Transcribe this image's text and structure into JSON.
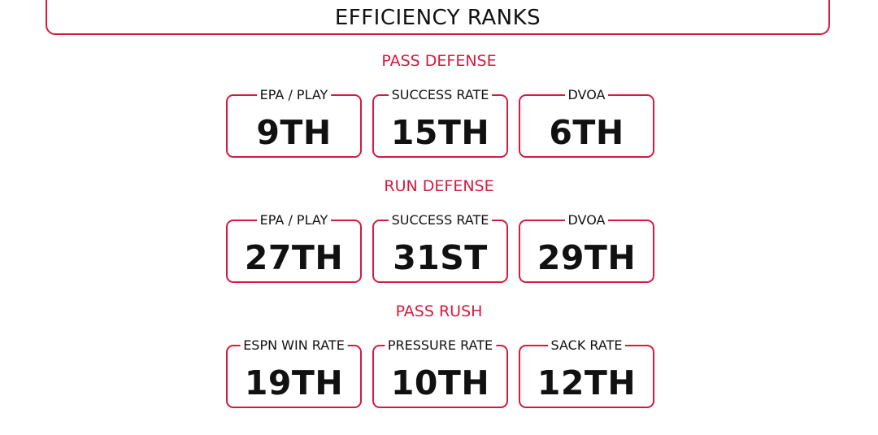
{
  "title": "EFFICIENCY RANKS",
  "sections": [
    {
      "title": "PASS DEFENSE",
      "cards": [
        {
          "label": "EPA / PLAY",
          "value": "9TH"
        },
        {
          "label": "SUCCESS RATE",
          "value": "15TH"
        },
        {
          "label": "DVOA",
          "value": "6TH"
        }
      ]
    },
    {
      "title": "RUN DEFENSE",
      "cards": [
        {
          "label": "EPA / PLAY",
          "value": "27TH"
        },
        {
          "label": "SUCCESS RATE",
          "value": "31ST"
        },
        {
          "label": "DVOA",
          "value": "29TH"
        }
      ]
    },
    {
      "title": "PASS RUSH",
      "cards": [
        {
          "label": "ESPN WIN RATE",
          "value": "19TH"
        },
        {
          "label": "PRESSURE RATE",
          "value": "10TH"
        },
        {
          "label": "SACK RATE",
          "value": "12TH"
        }
      ]
    }
  ],
  "colors": {
    "accent": "#d6193f",
    "text": "#111111",
    "background": "#ffffff"
  }
}
